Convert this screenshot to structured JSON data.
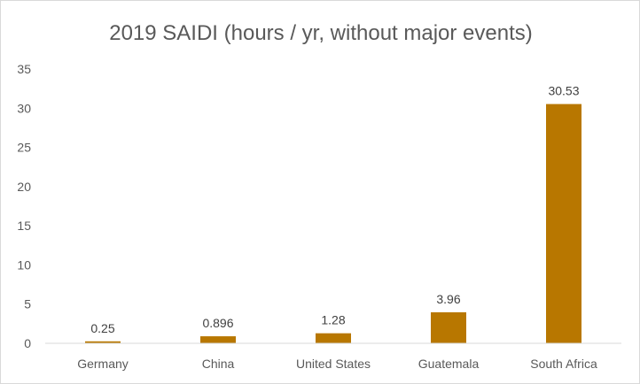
{
  "chart_data": {
    "type": "bar",
    "title": "2019 SAIDI (hours / yr, without major events)",
    "xlabel": "",
    "ylabel": "",
    "categories": [
      "Germany",
      "China",
      "United States",
      "Guatemala",
      "South Africa"
    ],
    "values": [
      0.25,
      0.896,
      1.28,
      3.96,
      30.53
    ],
    "data_labels": [
      "0.25",
      "0.896",
      "1.28",
      "3.96",
      "30.53"
    ],
    "ylim": [
      0,
      35
    ],
    "yticks": [
      0,
      5,
      10,
      15,
      20,
      25,
      30,
      35
    ],
    "ytick_labels": [
      "0",
      "5",
      "10",
      "15",
      "20",
      "25",
      "30",
      "35"
    ],
    "grid": false,
    "legend": "none",
    "bar_color": "#B87700",
    "axis_color": "#D9D9D9",
    "text_color": "#595959"
  }
}
